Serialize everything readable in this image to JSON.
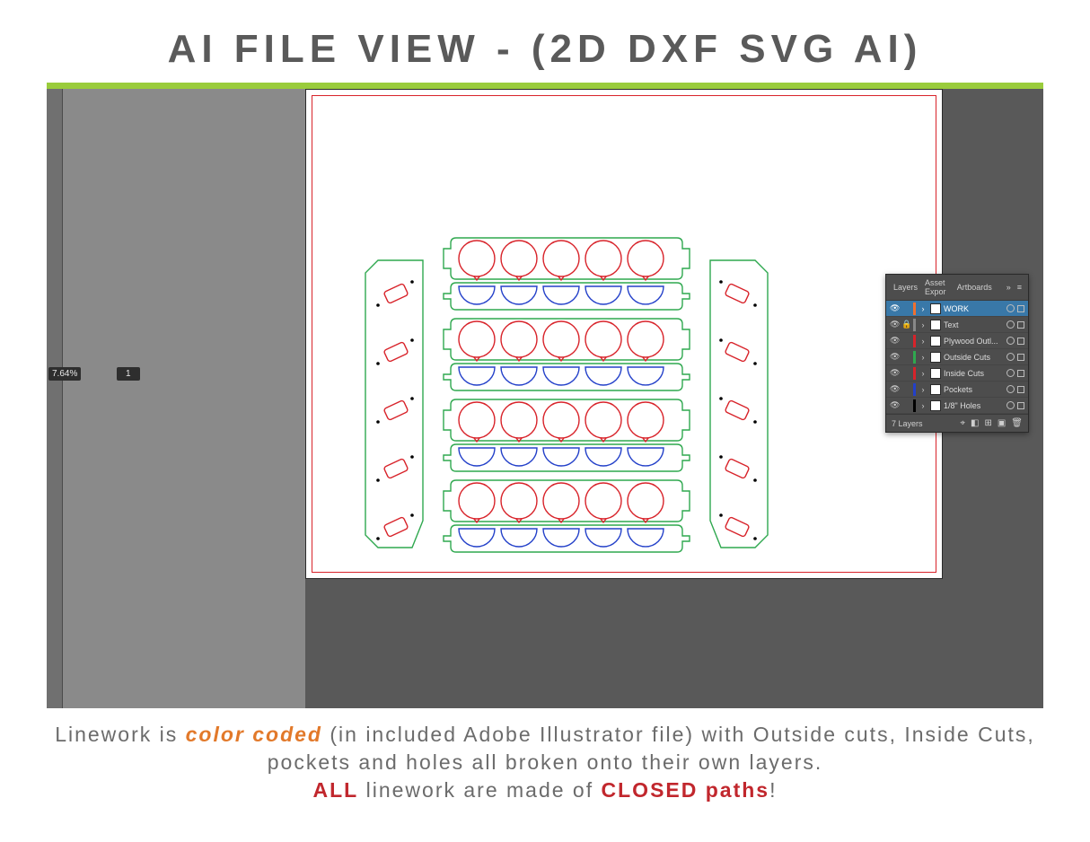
{
  "title": "AI FILE VIEW - (2D DXF SVG AI)",
  "accent_rule_color": "#9acc3c",
  "workspace": {
    "bg": "#595959",
    "side_bg": "#8a8a8a"
  },
  "zoom": "7.64%",
  "layer_indicator": "1",
  "artboard": {
    "outline_color": "#d8232a"
  },
  "drawing": {
    "circle_r": 20,
    "row_gap": 88,
    "circle_gap": 47,
    "colors": {
      "outside": "#2fa84f",
      "inside": "#d8232a",
      "pockets": "#2340c9",
      "holes": "#000000"
    }
  },
  "layers_panel": {
    "tabs": [
      "Layers",
      "Asset Expor",
      "Artboards"
    ],
    "count_label": "7 Layers",
    "layers": [
      {
        "name": "WORK",
        "chip": "#f07030",
        "locked": false,
        "selected": true
      },
      {
        "name": "Text",
        "chip": "#888888",
        "locked": true,
        "selected": false
      },
      {
        "name": "Plywood Outl...",
        "chip": "#d8232a",
        "locked": false,
        "selected": false
      },
      {
        "name": "Outside Cuts",
        "chip": "#2fa84f",
        "locked": false,
        "selected": false
      },
      {
        "name": "Inside Cuts",
        "chip": "#d8232a",
        "locked": false,
        "selected": false
      },
      {
        "name": "Pockets",
        "chip": "#2340c9",
        "locked": false,
        "selected": false
      },
      {
        "name": "1/8\" Holes",
        "chip": "#000000",
        "locked": false,
        "selected": false
      }
    ]
  },
  "caption": {
    "line1a": "Linework is ",
    "line1b": "color coded",
    "line1c": " (in included Adobe Illustrator file) with Outside cuts, Inside Cuts, pockets and holes all broken onto their own layers.",
    "line2a": "ALL",
    "line2b": " linework are made of ",
    "line2c": "CLOSED paths",
    "line2d": "!"
  }
}
